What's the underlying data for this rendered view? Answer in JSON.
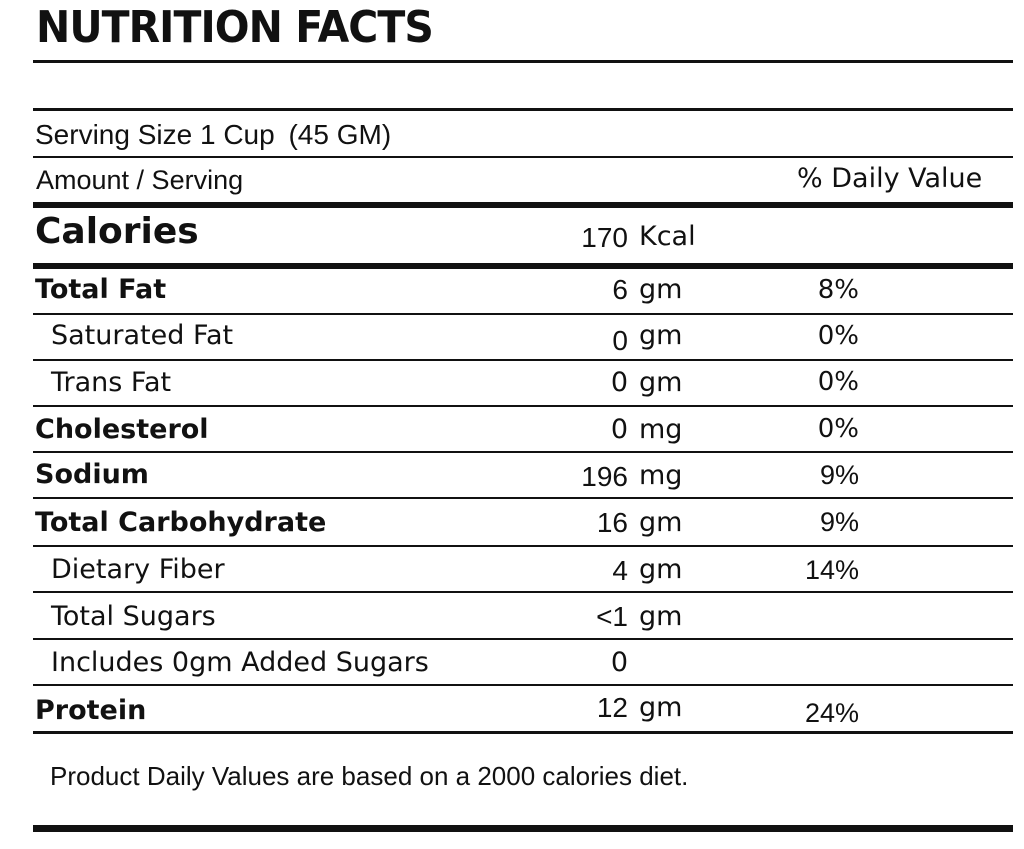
{
  "title": "NUTRITION FACTS",
  "serving": {
    "size_text": "Serving Size 1 ",
    "size_unit": "Cup",
    "size_grams": "(45 GM)"
  },
  "header": {
    "amount": "Amount / Serving",
    "daily_value": "% Daily Value"
  },
  "calories": {
    "label": "Calories",
    "value": "170",
    "unit": "Kcal"
  },
  "nutrients": [
    {
      "label": "Total Fat",
      "value": "6",
      "unit": "gm",
      "dv": "8%"
    },
    {
      "label": "Saturated Fat",
      "value": "0",
      "unit": "gm",
      "dv": "0%"
    },
    {
      "label": "Trans Fat",
      "value": "0",
      "unit": "gm",
      "dv": "0%"
    },
    {
      "label": "Cholesterol",
      "value": "0",
      "unit": "mg",
      "dv": "0%"
    },
    {
      "label": "Sodium",
      "value": "196",
      "unit": "mg",
      "dv": "9%"
    },
    {
      "label": "Total Carbohydrate",
      "value": "16",
      "unit": "gm",
      "dv": "9%"
    },
    {
      "label": "Dietary Fiber",
      "value": "4",
      "unit": "gm",
      "dv": "14%"
    },
    {
      "label": "Total Sugars",
      "value": "<1",
      "unit": "gm",
      "dv": ""
    },
    {
      "label": "Includes 0gm Added Sugars",
      "value": "0",
      "unit": "",
      "dv": ""
    },
    {
      "label": "Protein",
      "value": "12",
      "unit": "gm",
      "dv": "24%"
    }
  ],
  "footnote": "Product Daily Values are based on a 2000 calories diet."
}
